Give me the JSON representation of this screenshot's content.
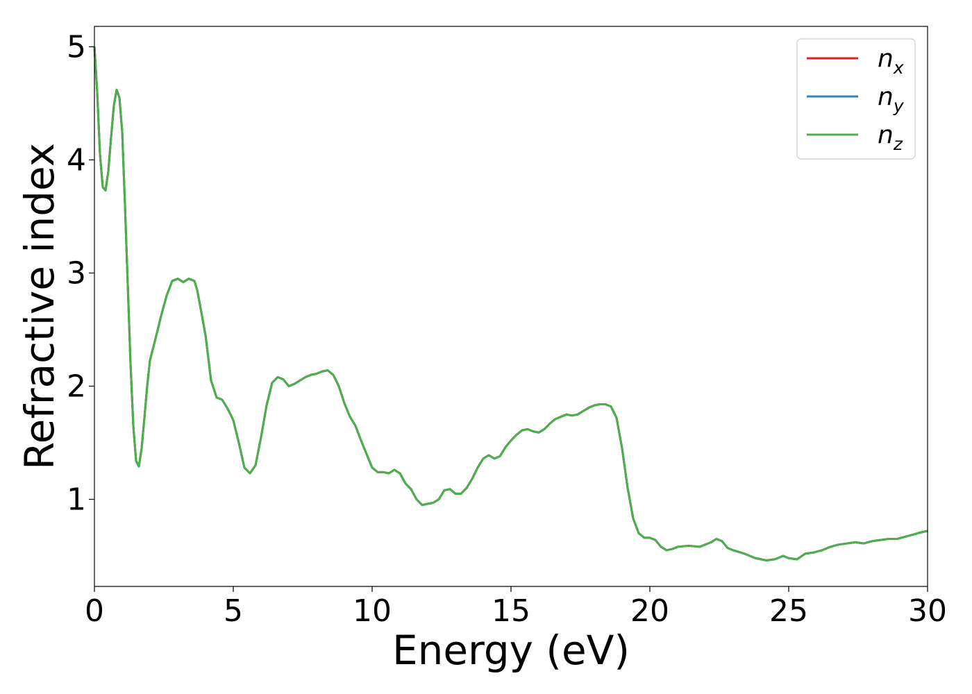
{
  "chart_data": {
    "type": "line",
    "title": "",
    "xlabel": "Energy (eV)",
    "ylabel": "Refractive index",
    "xlim": [
      0,
      30
    ],
    "ylim": [
      0.23,
      5.18
    ],
    "xticks": [
      0,
      5,
      10,
      15,
      20,
      25,
      30
    ],
    "yticks": [
      1,
      2,
      3,
      4,
      5
    ],
    "grid": false,
    "legend_position": "top-right",
    "series": [
      {
        "name": "n_x",
        "legend_base": "n",
        "legend_sub": "x",
        "color": "#e41a1c",
        "x": [
          0,
          0.1,
          0.2,
          0.3,
          0.4,
          0.5,
          0.6,
          0.7,
          0.8,
          0.9,
          1.0,
          1.1,
          1.2,
          1.3,
          1.4,
          1.5,
          1.6,
          1.7,
          1.8,
          1.9,
          2.0,
          2.2,
          2.4,
          2.6,
          2.8,
          3.0,
          3.2,
          3.4,
          3.6,
          3.7,
          3.8,
          4.0,
          4.2,
          4.4,
          4.6,
          4.8,
          5.0,
          5.2,
          5.4,
          5.6,
          5.8,
          6.0,
          6.2,
          6.4,
          6.6,
          6.8,
          6.9,
          7.0,
          7.2,
          7.4,
          7.6,
          7.8,
          8.0,
          8.2,
          8.4,
          8.6,
          8.8,
          9.0,
          9.2,
          9.4,
          9.6,
          9.8,
          10.0,
          10.2,
          10.4,
          10.6,
          10.8,
          11.0,
          11.2,
          11.4,
          11.6,
          11.8,
          12.0,
          12.2,
          12.4,
          12.6,
          12.8,
          13.0,
          13.2,
          13.4,
          13.6,
          13.8,
          14.0,
          14.2,
          14.4,
          14.6,
          14.8,
          15.0,
          15.2,
          15.4,
          15.6,
          15.8,
          16.0,
          16.2,
          16.4,
          16.6,
          16.8,
          17.0,
          17.2,
          17.4,
          17.6,
          17.8,
          18.0,
          18.2,
          18.4,
          18.6,
          18.8,
          19.0,
          19.2,
          19.4,
          19.6,
          19.8,
          20.0,
          20.2,
          20.4,
          20.6,
          20.8,
          21.0,
          21.4,
          21.8,
          22.2,
          22.4,
          22.6,
          22.8,
          23.0,
          23.4,
          23.8,
          24.2,
          24.5,
          24.8,
          25.0,
          25.3,
          25.6,
          25.9,
          26.2,
          26.5,
          26.8,
          27.1,
          27.4,
          27.7,
          28.0,
          28.3,
          28.6,
          28.9,
          29.2,
          29.5,
          29.8,
          30.0
        ],
        "y": [
          5.0,
          4.6,
          4.05,
          3.76,
          3.73,
          3.9,
          4.2,
          4.48,
          4.62,
          4.55,
          4.25,
          3.6,
          2.9,
          2.2,
          1.65,
          1.34,
          1.29,
          1.45,
          1.72,
          2.0,
          2.23,
          2.42,
          2.62,
          2.8,
          2.93,
          2.95,
          2.92,
          2.95,
          2.93,
          2.85,
          2.72,
          2.45,
          2.05,
          1.9,
          1.88,
          1.8,
          1.7,
          1.5,
          1.28,
          1.23,
          1.3,
          1.55,
          1.83,
          2.03,
          2.08,
          2.06,
          2.03,
          2.0,
          2.02,
          2.05,
          2.08,
          2.1,
          2.11,
          2.13,
          2.14,
          2.1,
          2.0,
          1.85,
          1.73,
          1.65,
          1.52,
          1.4,
          1.28,
          1.24,
          1.24,
          1.23,
          1.26,
          1.23,
          1.14,
          1.09,
          1.0,
          0.95,
          0.96,
          0.97,
          1.0,
          1.08,
          1.09,
          1.05,
          1.05,
          1.1,
          1.18,
          1.28,
          1.36,
          1.39,
          1.36,
          1.38,
          1.46,
          1.52,
          1.57,
          1.61,
          1.62,
          1.6,
          1.59,
          1.62,
          1.67,
          1.71,
          1.73,
          1.75,
          1.74,
          1.75,
          1.78,
          1.81,
          1.83,
          1.84,
          1.84,
          1.82,
          1.72,
          1.45,
          1.1,
          0.83,
          0.7,
          0.66,
          0.66,
          0.64,
          0.58,
          0.55,
          0.56,
          0.58,
          0.59,
          0.58,
          0.62,
          0.65,
          0.63,
          0.57,
          0.55,
          0.52,
          0.48,
          0.46,
          0.47,
          0.5,
          0.48,
          0.47,
          0.52,
          0.53,
          0.55,
          0.58,
          0.6,
          0.61,
          0.62,
          0.61,
          0.63,
          0.64,
          0.65,
          0.65,
          0.67,
          0.69,
          0.71,
          0.72
        ]
      },
      {
        "name": "n_y",
        "legend_base": "n",
        "legend_sub": "y",
        "color": "#377eb8",
        "x": [
          0,
          0.1,
          0.2,
          0.3,
          0.4,
          0.5,
          0.6,
          0.7,
          0.8,
          0.9,
          1.0,
          1.1,
          1.2,
          1.3,
          1.4,
          1.5,
          1.6,
          1.7,
          1.8,
          1.9,
          2.0,
          2.2,
          2.4,
          2.6,
          2.8,
          3.0,
          3.2,
          3.4,
          3.6,
          3.7,
          3.8,
          4.0,
          4.2,
          4.4,
          4.6,
          4.8,
          5.0,
          5.2,
          5.4,
          5.6,
          5.8,
          6.0,
          6.2,
          6.4,
          6.6,
          6.8,
          6.9,
          7.0,
          7.2,
          7.4,
          7.6,
          7.8,
          8.0,
          8.2,
          8.4,
          8.6,
          8.8,
          9.0,
          9.2,
          9.4,
          9.6,
          9.8,
          10.0,
          10.2,
          10.4,
          10.6,
          10.8,
          11.0,
          11.2,
          11.4,
          11.6,
          11.8,
          12.0,
          12.2,
          12.4,
          12.6,
          12.8,
          13.0,
          13.2,
          13.4,
          13.6,
          13.8,
          14.0,
          14.2,
          14.4,
          14.6,
          14.8,
          15.0,
          15.2,
          15.4,
          15.6,
          15.8,
          16.0,
          16.2,
          16.4,
          16.6,
          16.8,
          17.0,
          17.2,
          17.4,
          17.6,
          17.8,
          18.0,
          18.2,
          18.4,
          18.6,
          18.8,
          19.0,
          19.2,
          19.4,
          19.6,
          19.8,
          20.0,
          20.2,
          20.4,
          20.6,
          20.8,
          21.0,
          21.4,
          21.8,
          22.2,
          22.4,
          22.6,
          22.8,
          23.0,
          23.4,
          23.8,
          24.2,
          24.5,
          24.8,
          25.0,
          25.3,
          25.6,
          25.9,
          26.2,
          26.5,
          26.8,
          27.1,
          27.4,
          27.7,
          28.0,
          28.3,
          28.6,
          28.9,
          29.2,
          29.5,
          29.8,
          30.0
        ],
        "y": [
          5.0,
          4.6,
          4.05,
          3.76,
          3.73,
          3.9,
          4.2,
          4.48,
          4.62,
          4.55,
          4.25,
          3.6,
          2.9,
          2.2,
          1.65,
          1.34,
          1.29,
          1.45,
          1.72,
          2.0,
          2.23,
          2.42,
          2.62,
          2.8,
          2.93,
          2.95,
          2.92,
          2.95,
          2.93,
          2.85,
          2.72,
          2.45,
          2.05,
          1.9,
          1.88,
          1.8,
          1.7,
          1.5,
          1.28,
          1.23,
          1.3,
          1.55,
          1.83,
          2.03,
          2.08,
          2.06,
          2.03,
          2.0,
          2.02,
          2.05,
          2.08,
          2.1,
          2.11,
          2.13,
          2.14,
          2.1,
          2.0,
          1.85,
          1.73,
          1.65,
          1.52,
          1.4,
          1.28,
          1.24,
          1.24,
          1.23,
          1.26,
          1.23,
          1.14,
          1.09,
          1.0,
          0.95,
          0.96,
          0.97,
          1.0,
          1.08,
          1.09,
          1.05,
          1.05,
          1.1,
          1.18,
          1.28,
          1.36,
          1.39,
          1.36,
          1.38,
          1.46,
          1.52,
          1.57,
          1.61,
          1.62,
          1.6,
          1.59,
          1.62,
          1.67,
          1.71,
          1.73,
          1.75,
          1.74,
          1.75,
          1.78,
          1.81,
          1.83,
          1.84,
          1.84,
          1.82,
          1.72,
          1.45,
          1.1,
          0.83,
          0.7,
          0.66,
          0.66,
          0.64,
          0.58,
          0.55,
          0.56,
          0.58,
          0.59,
          0.58,
          0.62,
          0.65,
          0.63,
          0.57,
          0.55,
          0.52,
          0.48,
          0.46,
          0.47,
          0.5,
          0.48,
          0.47,
          0.52,
          0.53,
          0.55,
          0.58,
          0.6,
          0.61,
          0.62,
          0.61,
          0.63,
          0.64,
          0.65,
          0.65,
          0.67,
          0.69,
          0.71,
          0.72
        ]
      },
      {
        "name": "n_z",
        "legend_base": "n",
        "legend_sub": "z",
        "color": "#4daf4a",
        "x": [
          0,
          0.1,
          0.2,
          0.3,
          0.4,
          0.5,
          0.6,
          0.7,
          0.8,
          0.9,
          1.0,
          1.1,
          1.2,
          1.3,
          1.4,
          1.5,
          1.6,
          1.7,
          1.8,
          1.9,
          2.0,
          2.2,
          2.4,
          2.6,
          2.8,
          3.0,
          3.2,
          3.4,
          3.6,
          3.7,
          3.8,
          4.0,
          4.2,
          4.4,
          4.6,
          4.8,
          5.0,
          5.2,
          5.4,
          5.6,
          5.8,
          6.0,
          6.2,
          6.4,
          6.6,
          6.8,
          6.9,
          7.0,
          7.2,
          7.4,
          7.6,
          7.8,
          8.0,
          8.2,
          8.4,
          8.6,
          8.8,
          9.0,
          9.2,
          9.4,
          9.6,
          9.8,
          10.0,
          10.2,
          10.4,
          10.6,
          10.8,
          11.0,
          11.2,
          11.4,
          11.6,
          11.8,
          12.0,
          12.2,
          12.4,
          12.6,
          12.8,
          13.0,
          13.2,
          13.4,
          13.6,
          13.8,
          14.0,
          14.2,
          14.4,
          14.6,
          14.8,
          15.0,
          15.2,
          15.4,
          15.6,
          15.8,
          16.0,
          16.2,
          16.4,
          16.6,
          16.8,
          17.0,
          17.2,
          17.4,
          17.6,
          17.8,
          18.0,
          18.2,
          18.4,
          18.6,
          18.8,
          19.0,
          19.2,
          19.4,
          19.6,
          19.8,
          20.0,
          20.2,
          20.4,
          20.6,
          20.8,
          21.0,
          21.4,
          21.8,
          22.2,
          22.4,
          22.6,
          22.8,
          23.0,
          23.4,
          23.8,
          24.2,
          24.5,
          24.8,
          25.0,
          25.3,
          25.6,
          25.9,
          26.2,
          26.5,
          26.8,
          27.1,
          27.4,
          27.7,
          28.0,
          28.3,
          28.6,
          28.9,
          29.2,
          29.5,
          29.8,
          30.0
        ],
        "y": [
          5.0,
          4.6,
          4.05,
          3.76,
          3.73,
          3.9,
          4.2,
          4.48,
          4.62,
          4.55,
          4.25,
          3.6,
          2.9,
          2.2,
          1.65,
          1.34,
          1.29,
          1.45,
          1.72,
          2.0,
          2.23,
          2.42,
          2.62,
          2.8,
          2.93,
          2.95,
          2.92,
          2.95,
          2.93,
          2.85,
          2.72,
          2.45,
          2.05,
          1.9,
          1.88,
          1.8,
          1.7,
          1.5,
          1.28,
          1.23,
          1.3,
          1.55,
          1.83,
          2.03,
          2.08,
          2.06,
          2.03,
          2.0,
          2.02,
          2.05,
          2.08,
          2.1,
          2.11,
          2.13,
          2.14,
          2.1,
          2.0,
          1.85,
          1.73,
          1.65,
          1.52,
          1.4,
          1.28,
          1.24,
          1.24,
          1.23,
          1.26,
          1.23,
          1.14,
          1.09,
          1.0,
          0.95,
          0.96,
          0.97,
          1.0,
          1.08,
          1.09,
          1.05,
          1.05,
          1.1,
          1.18,
          1.28,
          1.36,
          1.39,
          1.36,
          1.38,
          1.46,
          1.52,
          1.57,
          1.61,
          1.62,
          1.6,
          1.59,
          1.62,
          1.67,
          1.71,
          1.73,
          1.75,
          1.74,
          1.75,
          1.78,
          1.81,
          1.83,
          1.84,
          1.84,
          1.82,
          1.72,
          1.45,
          1.1,
          0.83,
          0.7,
          0.66,
          0.66,
          0.64,
          0.58,
          0.55,
          0.56,
          0.58,
          0.59,
          0.58,
          0.62,
          0.65,
          0.63,
          0.57,
          0.55,
          0.52,
          0.48,
          0.46,
          0.47,
          0.5,
          0.48,
          0.47,
          0.52,
          0.53,
          0.55,
          0.58,
          0.6,
          0.61,
          0.62,
          0.61,
          0.63,
          0.64,
          0.65,
          0.65,
          0.67,
          0.69,
          0.71,
          0.72
        ]
      }
    ]
  }
}
